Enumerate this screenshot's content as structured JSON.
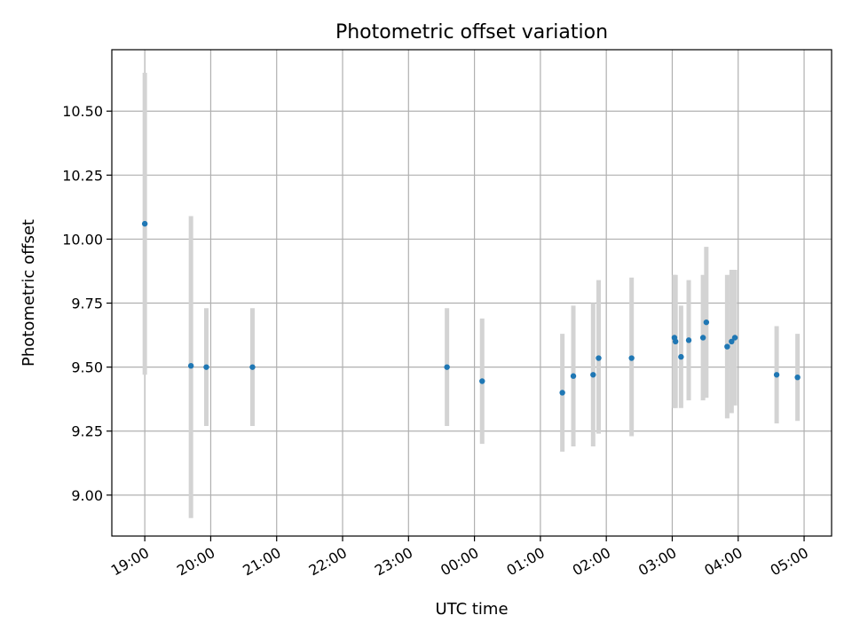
{
  "chart_data": {
    "type": "scatter",
    "title": "Photometric offset variation",
    "xlabel": "UTC time",
    "ylabel": "Photometric offset",
    "x_is_time": true,
    "x_ticks": [
      "19:00",
      "20:00",
      "21:00",
      "22:00",
      "23:00",
      "00:00",
      "01:00",
      "02:00",
      "03:00",
      "04:00",
      "05:00"
    ],
    "y_ticks": [
      "9.00",
      "9.25",
      "9.50",
      "9.75",
      "10.00",
      "10.25",
      "10.50"
    ],
    "ylim": [
      8.84,
      10.74
    ],
    "xlim": [
      "18:30",
      "29:25"
    ],
    "grid": true,
    "series": [
      {
        "marker_color": "#1f77b4",
        "errorbar_color": "#d3d3d3",
        "points": [
          {
            "x": "19:00",
            "y": 10.06,
            "ylo": 9.47,
            "yhi": 10.65
          },
          {
            "x": "19:42",
            "y": 9.505,
            "ylo": 8.91,
            "yhi": 10.09
          },
          {
            "x": "19:56",
            "y": 9.5,
            "ylo": 9.27,
            "yhi": 9.73
          },
          {
            "x": "20:38",
            "y": 9.5,
            "ylo": 9.27,
            "yhi": 9.73
          },
          {
            "x": "23:35",
            "y": 9.5,
            "ylo": 9.27,
            "yhi": 9.73
          },
          {
            "x": "00:07",
            "y": 9.445,
            "ylo": 9.2,
            "yhi": 9.69
          },
          {
            "x": "01:20",
            "y": 9.4,
            "ylo": 9.17,
            "yhi": 9.63
          },
          {
            "x": "01:30",
            "y": 9.465,
            "ylo": 9.19,
            "yhi": 9.74
          },
          {
            "x": "01:48",
            "y": 9.47,
            "ylo": 9.19,
            "yhi": 9.75
          },
          {
            "x": "01:53",
            "y": 9.535,
            "ylo": 9.24,
            "yhi": 9.84
          },
          {
            "x": "02:23",
            "y": 9.535,
            "ylo": 9.23,
            "yhi": 9.85
          },
          {
            "x": "03:02",
            "y": 9.615,
            "ylo": 9.34,
            "yhi": 9.86
          },
          {
            "x": "03:03",
            "y": 9.6,
            "ylo": 9.34,
            "yhi": 9.86
          },
          {
            "x": "03:08",
            "y": 9.54,
            "ylo": 9.34,
            "yhi": 9.74
          },
          {
            "x": "03:15",
            "y": 9.605,
            "ylo": 9.37,
            "yhi": 9.84
          },
          {
            "x": "03:28",
            "y": 9.615,
            "ylo": 9.37,
            "yhi": 9.86
          },
          {
            "x": "03:31",
            "y": 9.675,
            "ylo": 9.38,
            "yhi": 9.97
          },
          {
            "x": "03:50",
            "y": 9.58,
            "ylo": 9.3,
            "yhi": 9.86
          },
          {
            "x": "03:54",
            "y": 9.6,
            "ylo": 9.32,
            "yhi": 9.88
          },
          {
            "x": "03:57",
            "y": 9.615,
            "ylo": 9.35,
            "yhi": 9.88
          },
          {
            "x": "04:35",
            "y": 9.47,
            "ylo": 9.28,
            "yhi": 9.66
          },
          {
            "x": "04:54",
            "y": 9.46,
            "ylo": 9.29,
            "yhi": 9.63
          }
        ]
      }
    ]
  }
}
